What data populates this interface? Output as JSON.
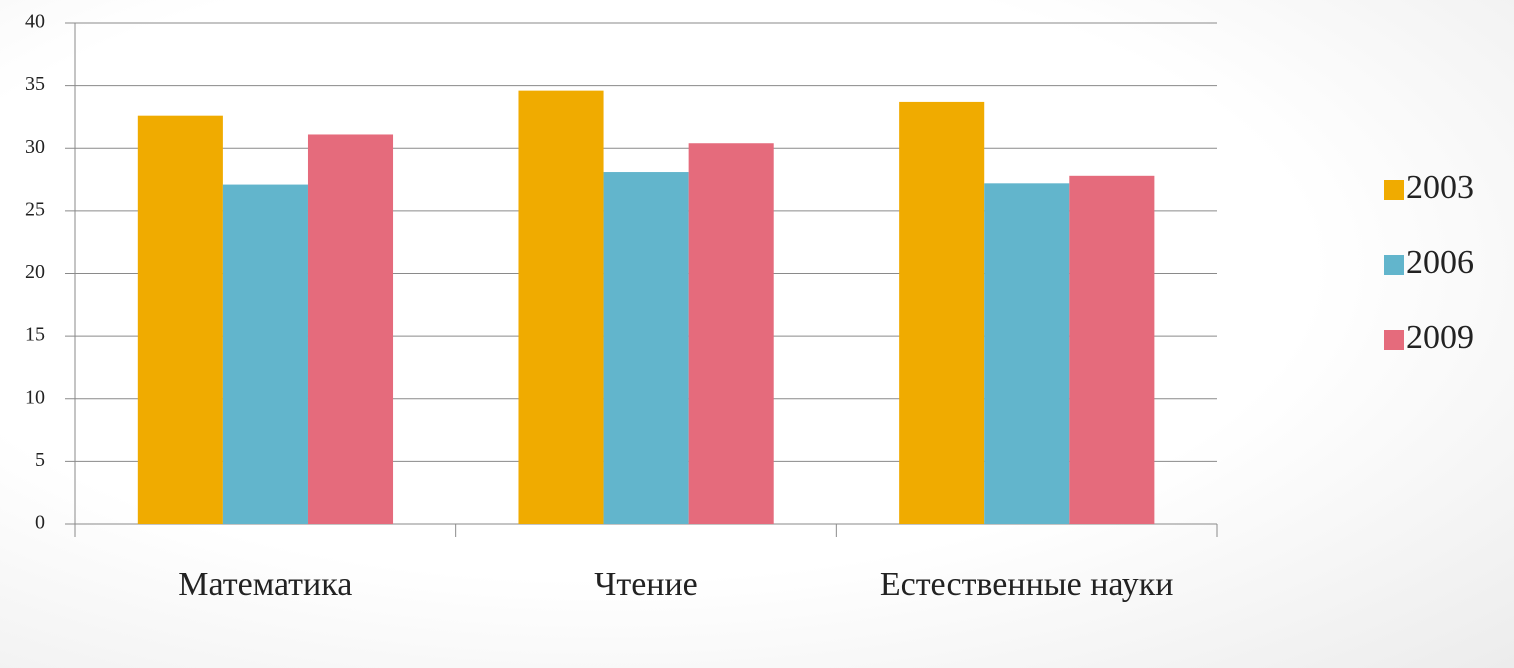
{
  "chart_data": {
    "type": "bar",
    "categories": [
      "Математика",
      "Чтение",
      "Естественные науки"
    ],
    "series": [
      {
        "name": "2003",
        "color": "#f0ab00",
        "values": [
          32.6,
          34.6,
          33.7
        ]
      },
      {
        "name": "2006",
        "color": "#62b5cc",
        "values": [
          27.1,
          28.1,
          27.2
        ]
      },
      {
        "name": "2009",
        "color": "#e56b7c",
        "values": [
          31.1,
          30.4,
          27.8
        ]
      }
    ],
    "ylim": [
      0,
      40
    ],
    "yticks": [
      0,
      5,
      10,
      15,
      20,
      25,
      30,
      35,
      40
    ],
    "grid": true,
    "legend": "right"
  }
}
